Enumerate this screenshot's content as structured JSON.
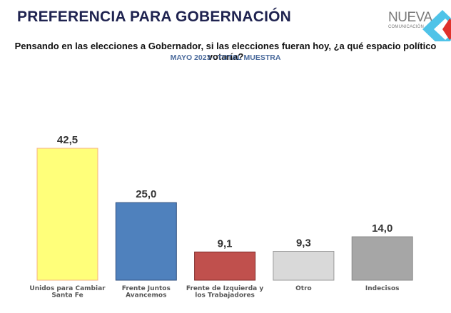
{
  "header": {
    "title": "PREFERENCIA PARA GOBERNACIÓN",
    "logo": {
      "word": "NUEVA",
      "sub": "COMUNICACIÓN",
      "icon": "diamond-logo-icon"
    }
  },
  "question": "Pensando en las elecciones a Gobernador, si las elecciones fueran hoy, ¿a qué espacio político votaría?",
  "subtitle": "MAYO 2023 - TOTAL MUESTRA",
  "chart_data": {
    "type": "bar",
    "title": "PREFERENCIA PARA GOBERNACIÓN",
    "subtitle": "MAYO 2023 - TOTAL MUESTRA",
    "xlabel": "",
    "ylabel": "",
    "ylim": [
      0,
      50
    ],
    "grid": false,
    "legend": "none",
    "categories": [
      [
        "Unidos para Cambiar",
        "Santa Fe"
      ],
      [
        "Frente Juntos",
        "Avancemos"
      ],
      [
        "Frente de Izquierda y",
        "los Trabajadores"
      ],
      [
        "Otro"
      ],
      [
        "Indecisos"
      ]
    ],
    "values": [
      42.5,
      25.0,
      9.1,
      9.3,
      14.0
    ],
    "value_labels": [
      "42,5",
      "25,0",
      "9,1",
      "9,3",
      "14,0"
    ],
    "colors": [
      "#ffff7a",
      "#4f81bd",
      "#c0504d",
      "#d9d9d9",
      "#a6a6a6"
    ],
    "borders": [
      "#f4b183",
      "#2f4f7f",
      "#7f2a28",
      "#9a9a9a",
      "#8a8a8a"
    ]
  }
}
